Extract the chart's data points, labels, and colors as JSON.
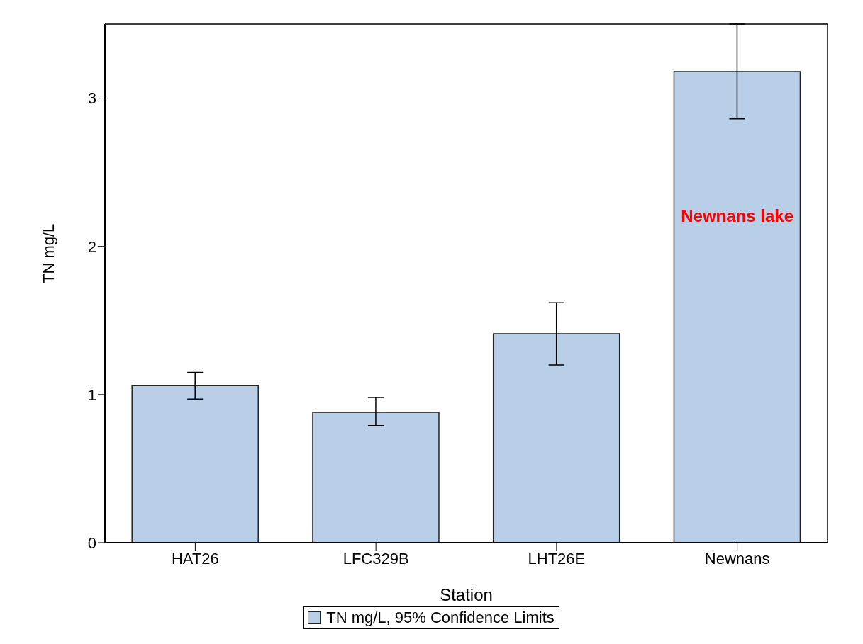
{
  "chart_data": {
    "type": "bar",
    "xlabel": "Station",
    "ylabel": "TN mg/L",
    "categories": [
      "HAT26",
      "LFC329B",
      "LHT26E",
      "Newnans"
    ],
    "series": [
      {
        "name": "TN mg/L, 95% Confidence Limits",
        "color": "#b8cfe7",
        "values": [
          1.06,
          0.88,
          1.41,
          3.18
        ],
        "errors": [
          [
            0.97,
            1.15
          ],
          [
            0.79,
            0.98
          ],
          [
            1.2,
            1.62
          ],
          [
            2.86,
            3.5
          ]
        ]
      }
    ],
    "ylim": [
      0,
      3.5
    ],
    "yticks": [
      0,
      1,
      2,
      3
    ],
    "grid": false,
    "legend": "bottom",
    "annotations": [
      "Newnans lake"
    ]
  }
}
